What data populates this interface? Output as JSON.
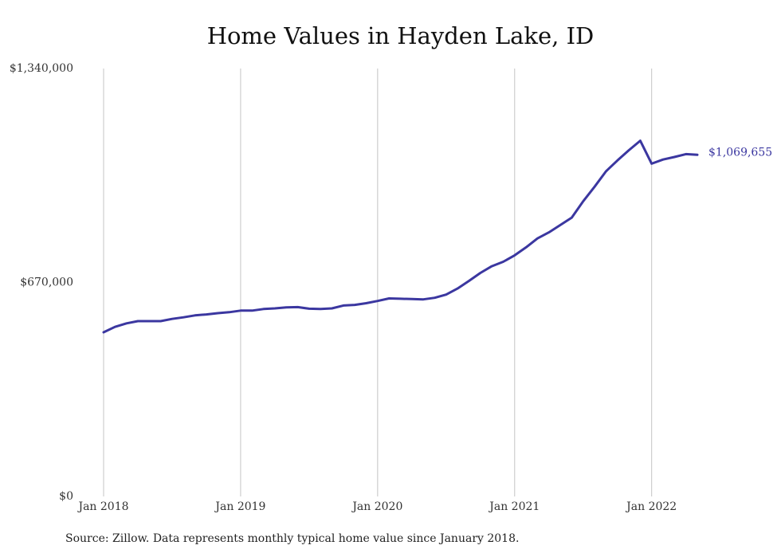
{
  "chart_data": {
    "type": "line",
    "title": "Home Values in Hayden Lake, ID",
    "xlabel": "",
    "ylabel": "",
    "ylim": [
      0,
      1340000
    ],
    "y_ticks": [
      {
        "value": 0,
        "label": "$0"
      },
      {
        "value": 670000,
        "label": "$670,000"
      },
      {
        "value": 1340000,
        "label": "$1,340,000"
      }
    ],
    "x_ticks": [
      {
        "date": "2018-01",
        "label": "Jan 2018"
      },
      {
        "date": "2019-01",
        "label": "Jan 2019"
      },
      {
        "date": "2020-01",
        "label": "Jan 2020"
      },
      {
        "date": "2021-01",
        "label": "Jan 2021"
      },
      {
        "date": "2022-01",
        "label": "Jan 2022"
      }
    ],
    "x_range": [
      "2018-01",
      "2022-05"
    ],
    "grid": "vertical",
    "line_color": "#3b37a0",
    "end_label": "$1,069,655",
    "series": [
      {
        "x": [
          "2018-01",
          "2018-02",
          "2018-03",
          "2018-04",
          "2018-05",
          "2018-06",
          "2018-07",
          "2018-08",
          "2018-09",
          "2018-10",
          "2018-11",
          "2018-12",
          "2019-01",
          "2019-02",
          "2019-03",
          "2019-04",
          "2019-05",
          "2019-06",
          "2019-07",
          "2019-08",
          "2019-09",
          "2019-10",
          "2019-11",
          "2019-12",
          "2020-01",
          "2020-02",
          "2020-03",
          "2020-04",
          "2020-05",
          "2020-06",
          "2020-07",
          "2020-08",
          "2020-09",
          "2020-10",
          "2020-11",
          "2020-12",
          "2021-01",
          "2021-02",
          "2021-03",
          "2021-04",
          "2021-05",
          "2021-06",
          "2021-07",
          "2021-08",
          "2021-09",
          "2021-10",
          "2021-11",
          "2021-12",
          "2022-01",
          "2022-02",
          "2022-03",
          "2022-04",
          "2022-05"
        ],
        "values": [
          514000,
          531000,
          542000,
          549000,
          549000,
          549000,
          556000,
          561000,
          567000,
          570000,
          574000,
          577000,
          582000,
          582000,
          587000,
          589000,
          592000,
          593000,
          588000,
          587000,
          589000,
          598000,
          600000,
          605000,
          612000,
          620000,
          619000,
          618000,
          617000,
          622000,
          632000,
          651000,
          675000,
          700000,
          721000,
          735000,
          755000,
          780000,
          808000,
          827000,
          850000,
          873000,
          924000,
          970000,
          1018000,
          1052000,
          1084000,
          1114000,
          1042000,
          1055000,
          1063000,
          1072000,
          1069655
        ]
      }
    ]
  },
  "source_note": "Source: Zillow. Data represents monthly typical home value since January 2018."
}
